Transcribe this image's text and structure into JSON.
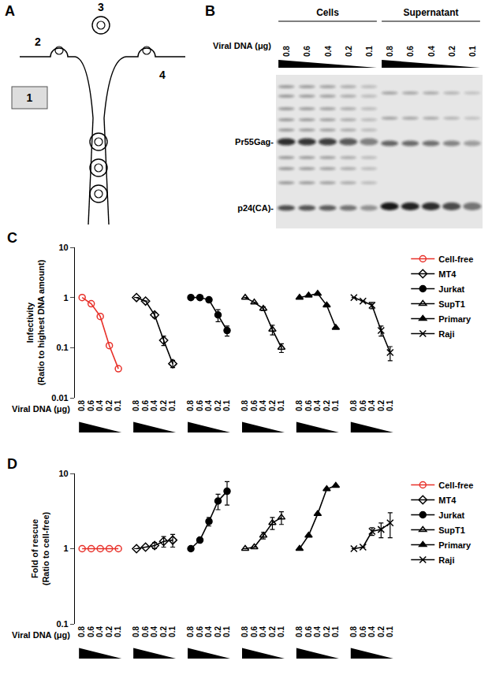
{
  "diagram": {
    "panel": "A",
    "labels": [
      "1",
      "2",
      "3",
      "4"
    ]
  },
  "blot": {
    "panel": "B",
    "groups": [
      "Cells",
      "Supernatant"
    ],
    "lane_title": "Viral DNA (μg)",
    "lanes": [
      0.8,
      0.6,
      0.4,
      0.2,
      0.1
    ],
    "bands": [
      "Pr55Gag-",
      "p24(CA)-"
    ]
  },
  "chart_data": [
    {
      "type": "line",
      "title": "C",
      "ylabel": "Infectivity (Ratio to highest DNA amount)",
      "xlabel": "Viral DNA (μg)",
      "log": "y",
      "grid": false,
      "legend": "right",
      "ylim": [
        0.01,
        10
      ],
      "yticks": [
        0.01,
        0.1,
        1,
        10
      ],
      "categories": [
        "0.8",
        "0.6",
        "0.4",
        "0.2",
        "0.1",
        null,
        "0.8",
        "0.6",
        "0.4",
        "0.2",
        "0.1",
        null,
        "0.8",
        "0.6",
        "0.4",
        "0.2",
        "0.1",
        null,
        "0.8",
        "0.6",
        "0.4",
        "0.2",
        "0.1",
        null,
        "0.8",
        "0.6",
        "0.4",
        "0.2",
        "0.1",
        null,
        "0.8",
        "0.6",
        "0.4",
        "0.2",
        "0.1"
      ],
      "series": [
        {
          "name": "Cell-free",
          "color": "#e8312a",
          "marker": "circle-open",
          "values": [
            1,
            0.75,
            0.42,
            0.11,
            0.038,
            null,
            null,
            null,
            null,
            null,
            null,
            null,
            null,
            null,
            null,
            null,
            null,
            null,
            null,
            null,
            null,
            null,
            null,
            null,
            null,
            null,
            null,
            null,
            null,
            null,
            null,
            null,
            null,
            null,
            null
          ]
        },
        {
          "name": "MT4",
          "color": "#000000",
          "marker": "diamond-open",
          "values": [
            null,
            null,
            null,
            null,
            null,
            null,
            1,
            0.85,
            0.45,
            0.14,
            0.048,
            null,
            null,
            null,
            null,
            null,
            null,
            null,
            null,
            null,
            null,
            null,
            null,
            null,
            null,
            null,
            null,
            null,
            null,
            null,
            null,
            null,
            null,
            null,
            null
          ],
          "errors": [
            null,
            null,
            null,
            null,
            null,
            null,
            null,
            null,
            0.05,
            0.03,
            0.008,
            null,
            null,
            null,
            null,
            null,
            null,
            null,
            null,
            null,
            null,
            null,
            null,
            null,
            null,
            null,
            null,
            null,
            null,
            null,
            null,
            null,
            null,
            null,
            null
          ]
        },
        {
          "name": "Jurkat",
          "color": "#000000",
          "marker": "circle",
          "values": [
            null,
            null,
            null,
            null,
            null,
            null,
            null,
            null,
            null,
            null,
            null,
            null,
            1,
            1,
            0.9,
            0.45,
            0.22,
            null,
            null,
            null,
            null,
            null,
            null,
            null,
            null,
            null,
            null,
            null,
            null,
            null,
            null,
            null,
            null,
            null,
            null
          ],
          "errors": [
            null,
            null,
            null,
            null,
            null,
            null,
            null,
            null,
            null,
            null,
            null,
            null,
            null,
            null,
            null,
            0.12,
            0.05,
            null,
            null,
            null,
            null,
            null,
            null,
            null,
            null,
            null,
            null,
            null,
            null,
            null,
            null,
            null,
            null,
            null,
            null
          ]
        },
        {
          "name": "SupT1",
          "color": "#000000",
          "marker": "triangle-up-open",
          "values": [
            null,
            null,
            null,
            null,
            null,
            null,
            null,
            null,
            null,
            null,
            null,
            null,
            null,
            null,
            null,
            null,
            null,
            null,
            1,
            0.8,
            0.6,
            0.23,
            0.1,
            null,
            null,
            null,
            null,
            null,
            null,
            null,
            null,
            null,
            null,
            null,
            null
          ],
          "errors": [
            null,
            null,
            null,
            null,
            null,
            null,
            null,
            null,
            null,
            null,
            null,
            null,
            null,
            null,
            null,
            null,
            null,
            null,
            null,
            null,
            0.05,
            0.05,
            0.02,
            null,
            null,
            null,
            null,
            null,
            null,
            null,
            null,
            null,
            null,
            null,
            null
          ]
        },
        {
          "name": "Primary",
          "color": "#000000",
          "marker": "triangle-up",
          "values": [
            null,
            null,
            null,
            null,
            null,
            null,
            null,
            null,
            null,
            null,
            null,
            null,
            null,
            null,
            null,
            null,
            null,
            null,
            null,
            null,
            null,
            null,
            null,
            null,
            1,
            1.1,
            1.2,
            0.7,
            0.25,
            null,
            null,
            null,
            null,
            null,
            null
          ]
        },
        {
          "name": "Raji",
          "color": "#000000",
          "marker": "x-thin-open",
          "values": [
            null,
            null,
            null,
            null,
            null,
            null,
            null,
            null,
            null,
            null,
            null,
            null,
            null,
            null,
            null,
            null,
            null,
            null,
            null,
            null,
            null,
            null,
            null,
            null,
            null,
            null,
            null,
            null,
            null,
            null,
            1,
            0.85,
            0.7,
            0.22,
            0.08
          ],
          "errors": [
            null,
            null,
            null,
            null,
            null,
            null,
            null,
            null,
            null,
            null,
            null,
            null,
            null,
            null,
            null,
            null,
            null,
            null,
            null,
            null,
            null,
            null,
            null,
            null,
            null,
            null,
            null,
            null,
            null,
            null,
            null,
            null,
            0.1,
            0.05,
            0.025
          ]
        }
      ]
    },
    {
      "type": "line",
      "title": "D",
      "ylabel": "Fold of rescue (Ratio to cell-free)",
      "xlabel": "Viral DNA (μg)",
      "log": "y",
      "grid": false,
      "legend": "right",
      "ylim": [
        0.1,
        10
      ],
      "yticks": [
        0.1,
        1,
        10
      ],
      "categories": [
        "0.8",
        "0.6",
        "0.4",
        "0.2",
        "0.1",
        null,
        "0.8",
        "0.6",
        "0.4",
        "0.2",
        "0.1",
        null,
        "0.8",
        "0.6",
        "0.4",
        "0.2",
        "0.1",
        null,
        "0.8",
        "0.6",
        "0.4",
        "0.2",
        "0.1",
        null,
        "0.8",
        "0.6",
        "0.4",
        "0.2",
        "0.1",
        null,
        "0.8",
        "0.6",
        "0.4",
        "0.2",
        "0.1"
      ],
      "series": [
        {
          "name": "Cell-free",
          "color": "#e8312a",
          "marker": "circle-open",
          "values": [
            1,
            1,
            1,
            1,
            1,
            null,
            null,
            null,
            null,
            null,
            null,
            null,
            null,
            null,
            null,
            null,
            null,
            null,
            null,
            null,
            null,
            null,
            null,
            null,
            null,
            null,
            null,
            null,
            null,
            null,
            null,
            null,
            null,
            null,
            null
          ]
        },
        {
          "name": "MT4",
          "color": "#000000",
          "marker": "diamond-open",
          "values": [
            null,
            null,
            null,
            null,
            null,
            null,
            1,
            1.05,
            1.1,
            1.25,
            1.3,
            null,
            null,
            null,
            null,
            null,
            null,
            null,
            null,
            null,
            null,
            null,
            null,
            null,
            null,
            null,
            null,
            null,
            null,
            null,
            null,
            null,
            null,
            null,
            null
          ],
          "errors": [
            null,
            null,
            null,
            null,
            null,
            null,
            null,
            null,
            0.1,
            0.2,
            0.25,
            null,
            null,
            null,
            null,
            null,
            null,
            null,
            null,
            null,
            null,
            null,
            null,
            null,
            null,
            null,
            null,
            null,
            null,
            null,
            null,
            null,
            null,
            null,
            null
          ]
        },
        {
          "name": "Jurkat",
          "color": "#000000",
          "marker": "circle",
          "values": [
            null,
            null,
            null,
            null,
            null,
            null,
            null,
            null,
            null,
            null,
            null,
            null,
            1,
            1.3,
            2.3,
            4.3,
            5.8,
            null,
            null,
            null,
            null,
            null,
            null,
            null,
            null,
            null,
            null,
            null,
            null,
            null,
            null,
            null,
            null,
            null,
            null
          ],
          "errors": [
            null,
            null,
            null,
            null,
            null,
            null,
            null,
            null,
            null,
            null,
            null,
            null,
            null,
            null,
            0.3,
            1,
            2,
            null,
            null,
            null,
            null,
            null,
            null,
            null,
            null,
            null,
            null,
            null,
            null,
            null,
            null,
            null,
            null,
            null,
            null
          ]
        },
        {
          "name": "SupT1",
          "color": "#000000",
          "marker": "triangle-up-open",
          "values": [
            null,
            null,
            null,
            null,
            null,
            null,
            null,
            null,
            null,
            null,
            null,
            null,
            null,
            null,
            null,
            null,
            null,
            null,
            1,
            1.05,
            1.5,
            2.2,
            2.6,
            null,
            null,
            null,
            null,
            null,
            null,
            null,
            null,
            null,
            null,
            null,
            null
          ],
          "errors": [
            null,
            null,
            null,
            null,
            null,
            null,
            null,
            null,
            null,
            null,
            null,
            null,
            null,
            null,
            null,
            null,
            null,
            null,
            null,
            null,
            0.15,
            0.4,
            0.5,
            null,
            null,
            null,
            null,
            null,
            null,
            null,
            null,
            null,
            null,
            null,
            null
          ]
        },
        {
          "name": "Primary",
          "color": "#000000",
          "marker": "triangle-up",
          "values": [
            null,
            null,
            null,
            null,
            null,
            null,
            null,
            null,
            null,
            null,
            null,
            null,
            null,
            null,
            null,
            null,
            null,
            null,
            null,
            null,
            null,
            null,
            null,
            null,
            1,
            1.5,
            2.9,
            6.2,
            6.9,
            null,
            null,
            null,
            null,
            null,
            null
          ]
        },
        {
          "name": "Raji",
          "color": "#000000",
          "marker": "x-thin-open",
          "values": [
            null,
            null,
            null,
            null,
            null,
            null,
            null,
            null,
            null,
            null,
            null,
            null,
            null,
            null,
            null,
            null,
            null,
            null,
            null,
            null,
            null,
            null,
            null,
            null,
            null,
            null,
            null,
            null,
            null,
            null,
            1,
            1.05,
            1.7,
            1.8,
            2.2
          ],
          "errors": [
            null,
            null,
            null,
            null,
            null,
            null,
            null,
            null,
            null,
            null,
            null,
            null,
            null,
            null,
            null,
            null,
            null,
            null,
            null,
            null,
            null,
            null,
            null,
            null,
            null,
            null,
            null,
            null,
            null,
            null,
            null,
            null,
            0.2,
            0.4,
            0.8
          ]
        }
      ]
    }
  ]
}
